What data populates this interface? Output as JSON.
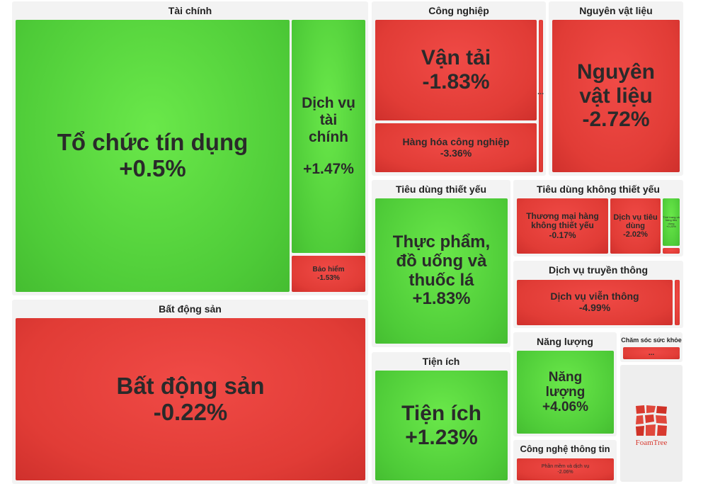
{
  "chart_data": {
    "type": "treemap",
    "title": "",
    "colors": {
      "positive": "#4ecb38",
      "negative": "#e13c36"
    },
    "groups": [
      {
        "name": "Tài chính",
        "items": [
          {
            "name": "Tổ chức tín dụng",
            "change": "+0.5%",
            "value": 0.5
          },
          {
            "name": "Dịch vụ tài chính",
            "change": "+1.47%",
            "value": 1.47
          },
          {
            "name": "Bảo hiểm",
            "change": "-1.53%",
            "value": -1.53
          }
        ]
      },
      {
        "name": "Bất động sản",
        "items": [
          {
            "name": "Bất động sản",
            "change": "-0.22%",
            "value": -0.22
          }
        ]
      },
      {
        "name": "Công nghiệp",
        "items": [
          {
            "name": "Vận tải",
            "change": "-1.83%",
            "value": -1.83
          },
          {
            "name": "Hàng hóa công nghiệp",
            "change": "-3.36%",
            "value": -3.36
          }
        ]
      },
      {
        "name": "Nguyên vật liệu",
        "items": [
          {
            "name": "Nguyên vật liệu",
            "change": "-2.72%",
            "value": -2.72
          }
        ]
      },
      {
        "name": "Tiêu dùng thiết yếu",
        "items": [
          {
            "name": "Thực phẩm, đồ uống và thuốc lá",
            "change": "+1.83%",
            "value": 1.83
          }
        ]
      },
      {
        "name": "Tiêu dùng không thiết yếu",
        "items": [
          {
            "name": "Thương mại hàng không thiết yếu",
            "change": "-0.17%",
            "value": -0.17
          },
          {
            "name": "Dịch vụ tiêu dùng",
            "change": "-2.02%",
            "value": -2.02
          },
          {
            "name": "Thời trang và hàng tiêu dùng",
            "change": "+0.23%",
            "value": 0.23
          }
        ]
      },
      {
        "name": "Dịch vụ truyền thông",
        "items": [
          {
            "name": "Dịch vụ viễn thông",
            "change": "-4.99%",
            "value": -4.99
          }
        ]
      },
      {
        "name": "Tiện ích",
        "items": [
          {
            "name": "Tiện ích",
            "change": "+1.23%",
            "value": 1.23
          }
        ]
      },
      {
        "name": "Năng lượng",
        "items": [
          {
            "name": "Năng lượng",
            "change": "+4.06%",
            "value": 4.06
          }
        ]
      },
      {
        "name": "Chăm sóc sức khỏe",
        "items": []
      },
      {
        "name": "Công nghệ thông tin",
        "items": [
          {
            "name": "Phần mềm và dịch vụ",
            "change": "-2.06%",
            "value": -2.06
          }
        ]
      }
    ]
  },
  "branding": {
    "logo_text": "FoamTree"
  },
  "overflow_marker": "..."
}
